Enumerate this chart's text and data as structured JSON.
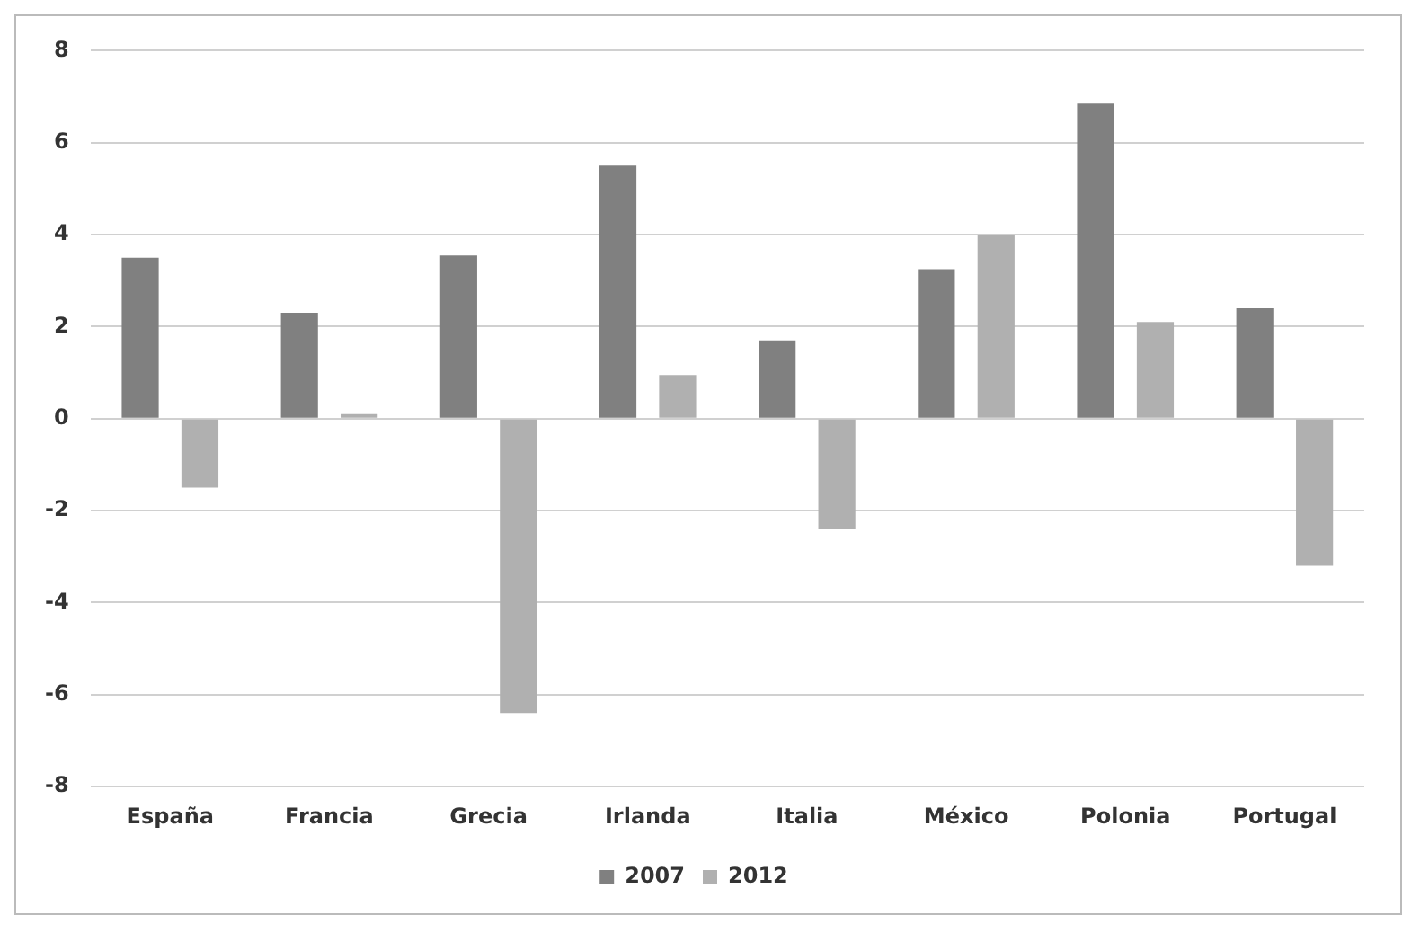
{
  "chart_data": {
    "type": "bar",
    "categories": [
      "España",
      "Francia",
      "Grecia",
      "Irlanda",
      "Italia",
      "México",
      "Polonia",
      "Portugal"
    ],
    "series": [
      {
        "name": "2007",
        "color": "#808080",
        "values": [
          3.5,
          2.3,
          3.55,
          5.5,
          1.7,
          3.25,
          6.85,
          2.4
        ]
      },
      {
        "name": "2012",
        "color": "#b0b0b0",
        "values": [
          -1.5,
          0.1,
          -6.4,
          0.95,
          -2.4,
          4.0,
          2.1,
          -3.2
        ]
      }
    ],
    "ylim": [
      -8,
      8
    ],
    "yticks": [
      -8,
      -6,
      -4,
      -2,
      0,
      2,
      4,
      6,
      8
    ],
    "grid": "y",
    "legend": "bottom"
  }
}
